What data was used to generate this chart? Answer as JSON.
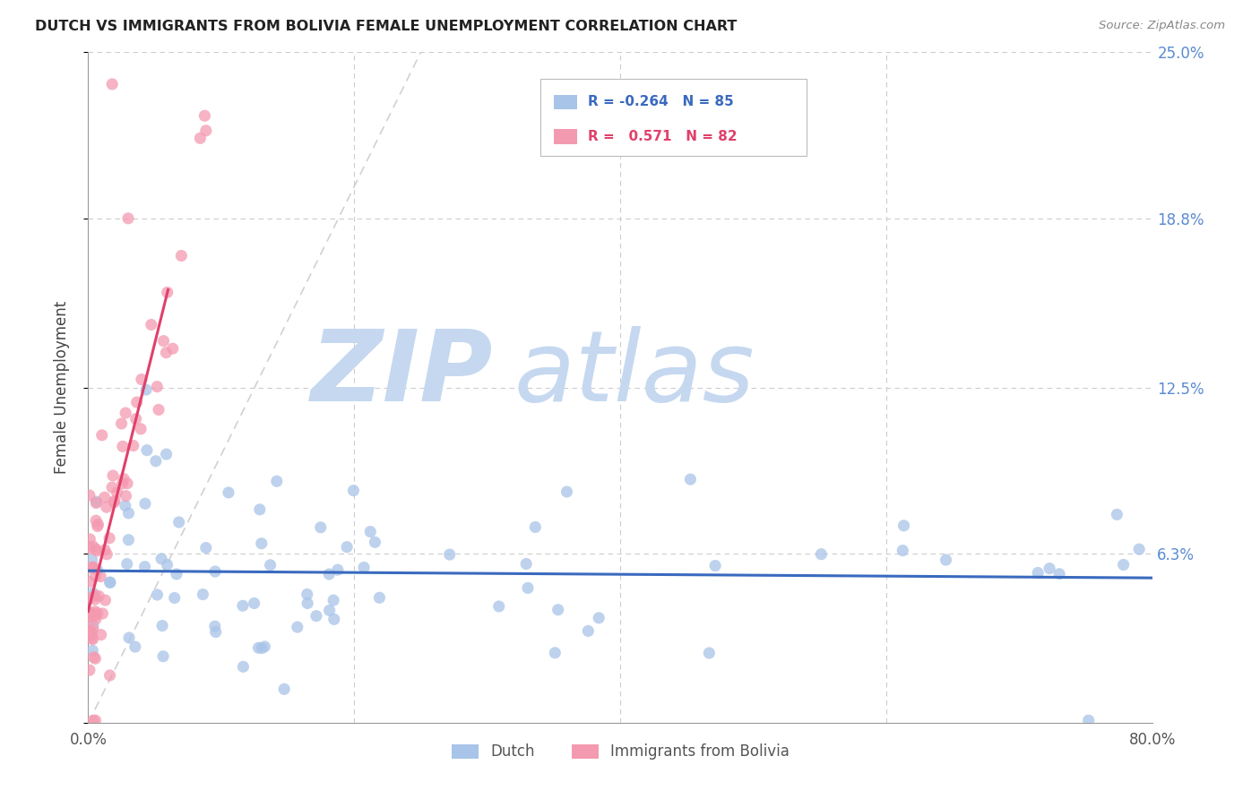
{
  "title": "DUTCH VS IMMIGRANTS FROM BOLIVIA FEMALE UNEMPLOYMENT CORRELATION CHART",
  "source": "Source: ZipAtlas.com",
  "ylabel": "Female Unemployment",
  "xmin": 0.0,
  "xmax": 0.8,
  "ymin": 0.0,
  "ymax": 0.25,
  "dutch_color": "#a8c4e8",
  "bolivia_color": "#f49ab0",
  "dutch_line_color": "#3a6abf",
  "bolivia_line_color": "#e0406a",
  "diagonal_color": "#cccccc",
  "watermark_zip_color": "#c5d8f0",
  "watermark_atlas_color": "#c5d8f0",
  "right_tick_color": "#5b8bd0",
  "R_dutch": -0.264,
  "N_dutch": 85,
  "R_bolivia": 0.571,
  "N_bolivia": 82,
  "background_color": "#ffffff"
}
